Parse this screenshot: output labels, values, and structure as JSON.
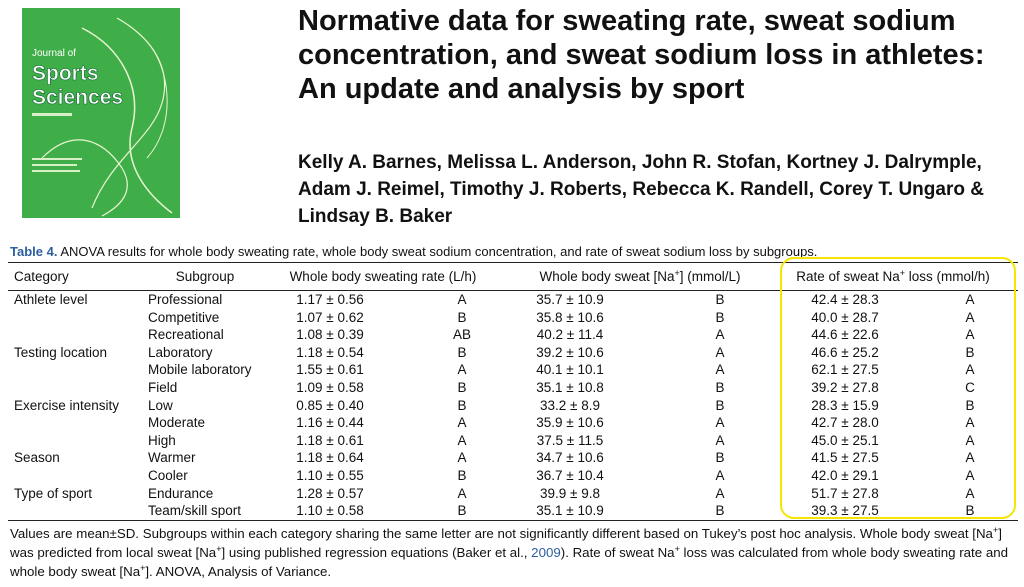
{
  "cover": {
    "line1": "Journal of",
    "line2": "Sports",
    "line3": "Sciences"
  },
  "header": {
    "title_lines": [
      "Normative data for sweating rate, sweat sodium",
      "concentration, and sweat sodium loss in athletes:",
      "An update and analysis by sport"
    ],
    "author_lines": [
      "Kelly A. Barnes, Melissa L. Anderson, John R. Stofan, Kortney J. Dalrymple,",
      "Adam J. Reimel, Timothy J. Roberts, Rebecca K. Randell, Corey T. Ungaro &",
      "Lindsay B. Baker"
    ]
  },
  "table": {
    "label": "Table 4.",
    "caption": "ANOVA results for whole body sweating rate, whole body sweat sodium concentration, and rate of sweat sodium loss by subgroups.",
    "columns": [
      {
        "before": "Category"
      },
      {
        "before": "Subgroup"
      },
      {
        "before": "Whole body sweating rate (L/h)"
      },
      {
        "before": "Whole body sweat [Na",
        "sup": "+",
        "after": "] (mmol/L)"
      },
      {
        "before": "Rate of sweat Na",
        "sup": "+",
        "after": " loss (mmol/h)"
      }
    ],
    "rows": [
      [
        "Athlete level",
        "Professional",
        "1.17 ± 0.56",
        "A",
        "35.7 ± 10.9",
        "B",
        "42.4 ± 28.3",
        "A"
      ],
      [
        null,
        "Competitive",
        "1.07 ± 0.62",
        "B",
        "35.8 ± 10.6",
        "B",
        "40.0 ± 28.7",
        "A"
      ],
      [
        null,
        "Recreational",
        "1.08 ± 0.39",
        "AB",
        "40.2 ± 11.4",
        "A",
        "44.6 ± 22.6",
        "A"
      ],
      [
        "Testing location",
        "Laboratory",
        "1.18 ± 0.54",
        "B",
        "39.2 ± 10.6",
        "A",
        "46.6 ± 25.2",
        "B"
      ],
      [
        null,
        "Mobile laboratory",
        "1.55 ± 0.61",
        "A",
        "40.1 ± 10.1",
        "A",
        "62.1 ± 27.5",
        "A"
      ],
      [
        null,
        "Field",
        "1.09 ± 0.58",
        "B",
        "35.1 ± 10.8",
        "B",
        "39.2 ± 27.8",
        "C"
      ],
      [
        "Exercise intensity",
        "Low",
        "0.85 ± 0.40",
        "B",
        "33.2 ± 8.9",
        "B",
        "28.3 ± 15.9",
        "B"
      ],
      [
        null,
        "Moderate",
        "1.16 ± 0.44",
        "A",
        "35.9 ± 10.6",
        "A",
        "42.7 ± 28.0",
        "A"
      ],
      [
        null,
        "High",
        "1.18 ± 0.61",
        "A",
        "37.5 ± 11.5",
        "A",
        "45.0 ± 25.1",
        "A"
      ],
      [
        "Season",
        "Warmer",
        "1.18 ± 0.64",
        "A",
        "34.7 ± 10.6",
        "B",
        "41.5 ± 27.5",
        "A"
      ],
      [
        null,
        "Cooler",
        "1.10 ± 0.55",
        "B",
        "36.7 ± 10.4",
        "A",
        "42.0 ± 29.1",
        "A"
      ],
      [
        "Type of sport",
        "Endurance",
        "1.28 ± 0.57",
        "A",
        "39.9 ± 9.8",
        "A",
        "51.7 ± 27.8",
        "A"
      ],
      [
        null,
        "Team/skill sport",
        "1.10 ± 0.58",
        "B",
        "35.1 ± 10.9",
        "B",
        "39.3 ± 27.5",
        "B"
      ]
    ],
    "note": [
      {
        "t": "Values are mean±SD. Subgroups within each category sharing the same letter are not significantly different based on Tukey’s post hoc analysis. Whole body sweat [Na"
      },
      {
        "sup": "+"
      },
      {
        "t": "] was predicted from local sweat [Na"
      },
      {
        "sup": "+"
      },
      {
        "t": "] using published regression equations (Baker et al., "
      },
      {
        "link": "2009"
      },
      {
        "t": "). Rate of sweat Na"
      },
      {
        "sup": "+"
      },
      {
        "t": " loss was calculated from whole body sweating rate and whole body sweat [Na"
      },
      {
        "sup": "+"
      },
      {
        "t": "]. ANOVA, Analysis of Variance."
      }
    ]
  }
}
